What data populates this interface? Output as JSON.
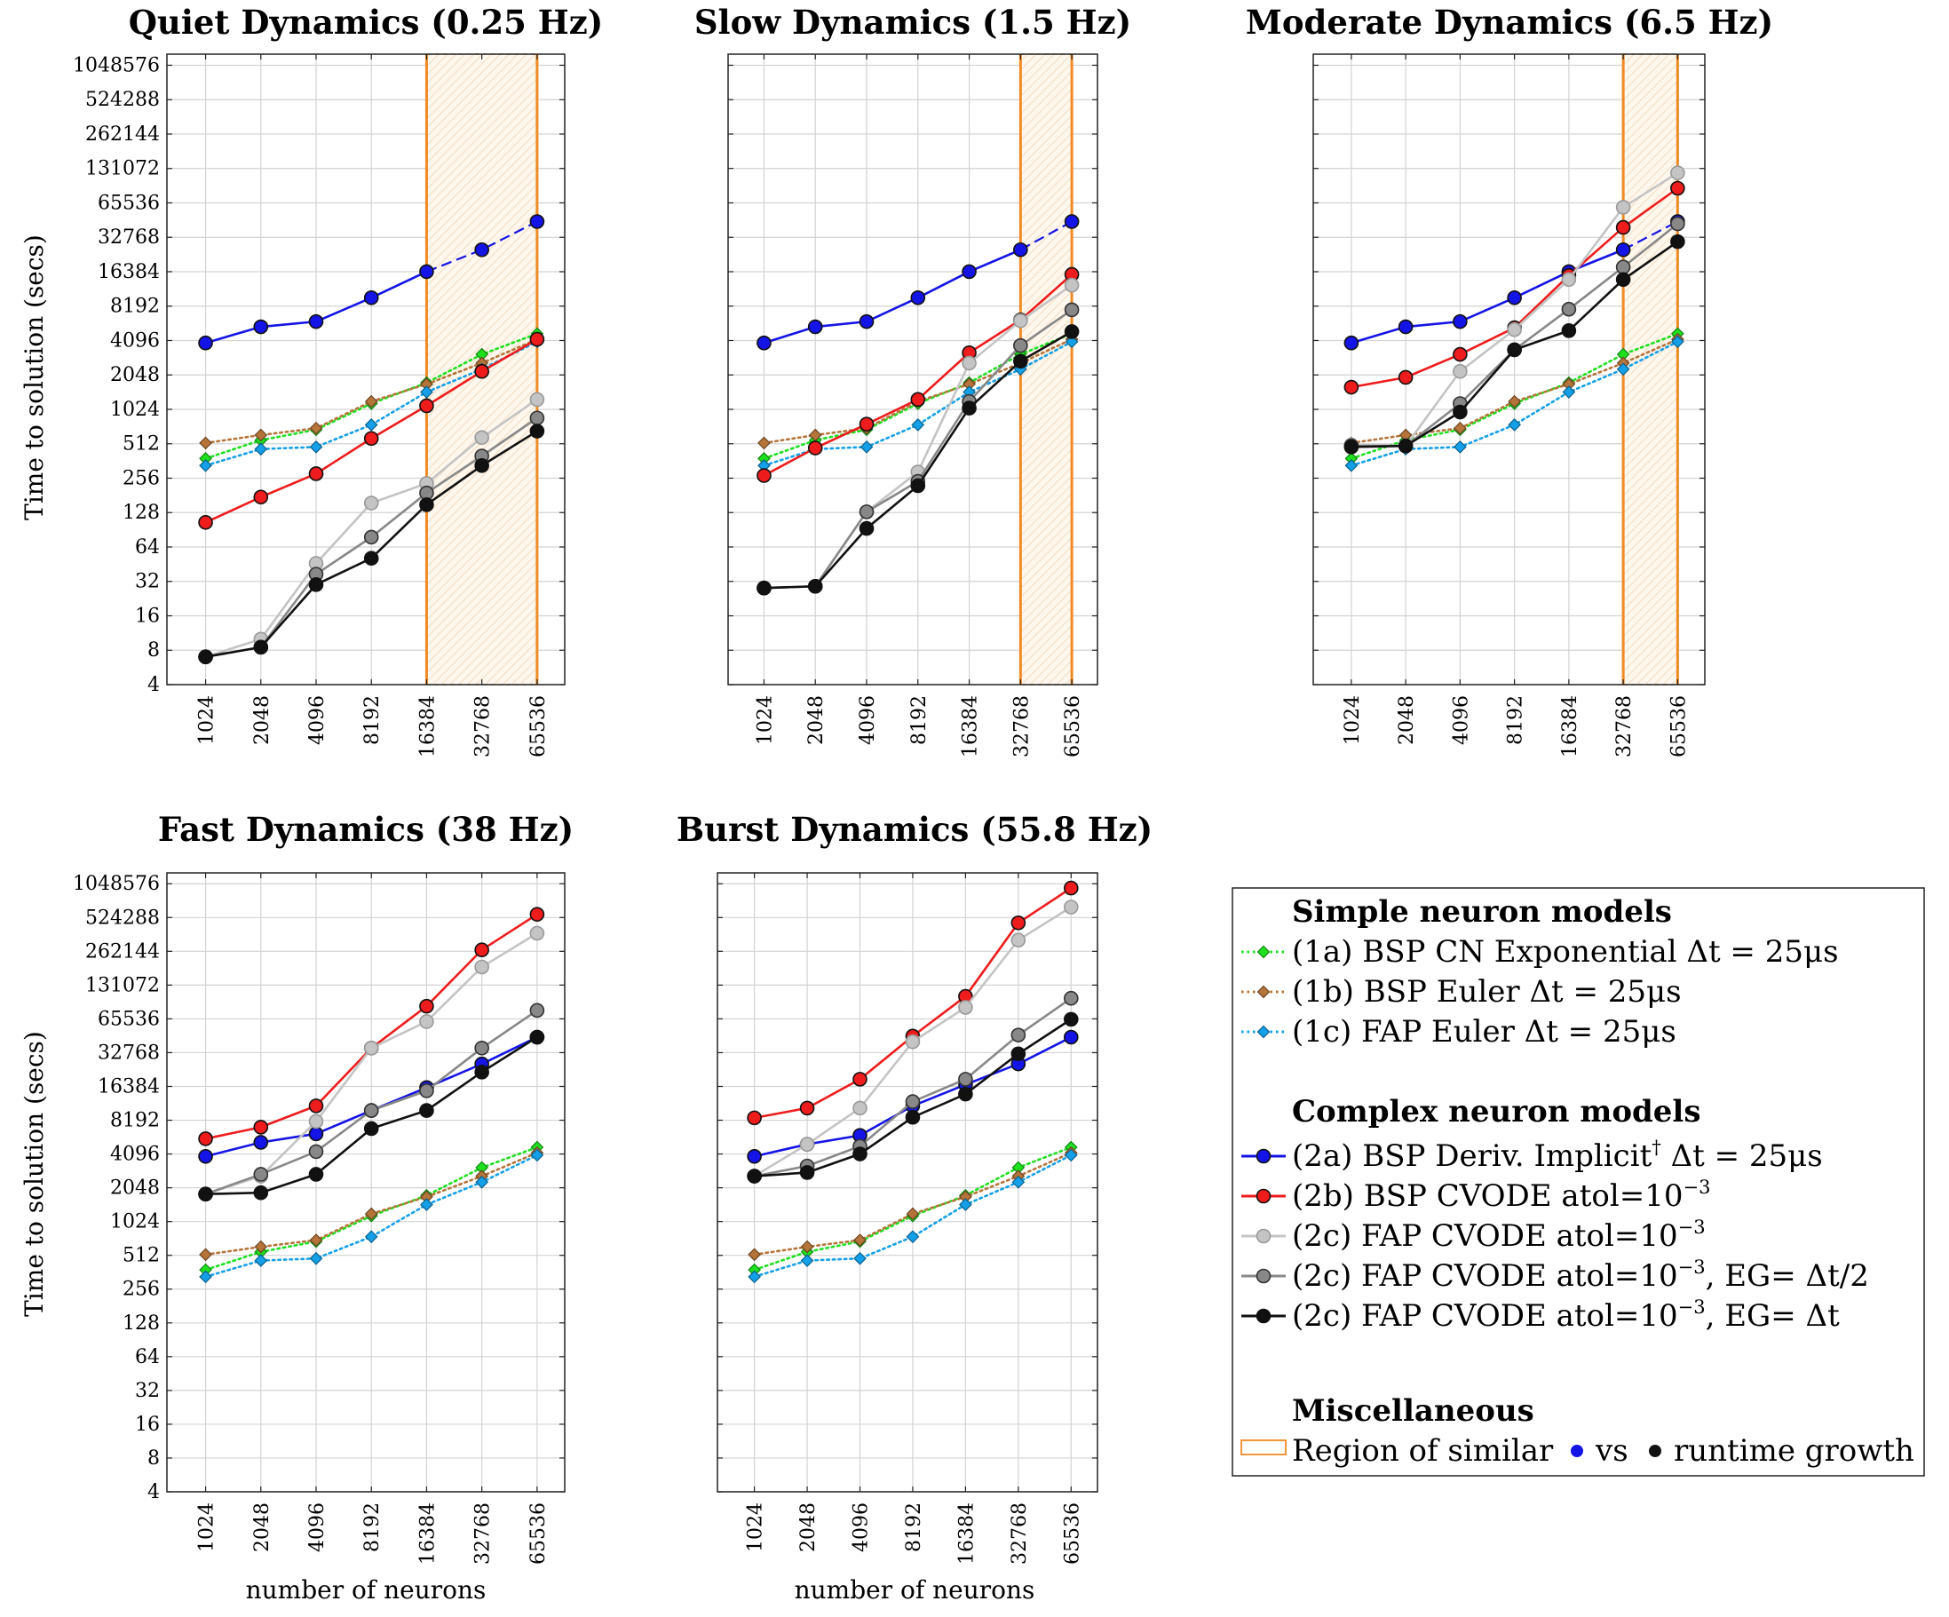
{
  "chart_data": {
    "type": "line",
    "scale": "log2",
    "x": [
      1024,
      2048,
      4096,
      8192,
      16384,
      32768,
      65536
    ],
    "x_tick_labels": [
      "1024",
      "2048",
      "4096",
      "8192",
      "16384",
      "32768",
      "65536"
    ],
    "y_tick_values": [
      4,
      8,
      16,
      32,
      64,
      128,
      256,
      512,
      1024,
      2048,
      4096,
      8192,
      16384,
      32768,
      65536,
      131072,
      262144,
      524288,
      1048576
    ],
    "y_tick_labels": [
      "4",
      "8",
      "16",
      "32",
      "64",
      "128",
      "256",
      "512",
      "1024",
      "2048",
      "4096",
      "8192",
      "16384",
      "32768",
      "65536",
      "131072",
      "262144",
      "524288",
      "1048576"
    ],
    "ylim": [
      4,
      1310720
    ],
    "ylabel": "Time to solution (secs)",
    "xlabel": "number of neurons",
    "grid": true,
    "series_styles": {
      "1a": {
        "color": "#1ee01e",
        "dash": "dotted",
        "marker": "diamond"
      },
      "1b": {
        "color": "#b5743a",
        "dash": "dotted",
        "marker": "diamond"
      },
      "1c": {
        "color": "#14a0e8",
        "dash": "dotted",
        "marker": "diamond"
      },
      "2a": {
        "color": "#1414e6",
        "dash": "solid",
        "marker": "circle"
      },
      "2b": {
        "color": "#ee1c1c",
        "dash": "solid",
        "marker": "circle"
      },
      "2c1": {
        "color": "#c4c4c4",
        "dash": "solid",
        "marker": "circle"
      },
      "2c2": {
        "color": "#888888",
        "dash": "solid",
        "marker": "circle"
      },
      "2c3": {
        "color": "#111111",
        "dash": "solid",
        "marker": "circle"
      }
    },
    "region_color": "#f08a24",
    "panels": [
      {
        "title": "Quiet Dynamics (0.25 Hz)",
        "region": [
          16384,
          65536
        ],
        "dashed_2a_from": 16384,
        "series": [
          {
            "id": "1a",
            "values": [
              380,
              550,
              680,
              1150,
              1750,
              3100,
              4700
            ]
          },
          {
            "id": "1b",
            "values": [
              520,
              610,
              700,
              1200,
              1700,
              2600,
              4200
            ]
          },
          {
            "id": "1c",
            "values": [
              330,
              460,
              480,
              750,
              1450,
              2300,
              4000
            ]
          },
          {
            "id": "2a",
            "values": [
              3900,
              5400,
              6000,
              9700,
              16400,
              25500,
              45000
            ]
          },
          {
            "id": "2b",
            "values": [
              105,
              175,
              280,
              570,
              1100,
              2200,
              4200
            ]
          },
          {
            "id": "2c1",
            "values": [
              7,
              10,
              46,
              155,
              230,
              580,
              1250
            ]
          },
          {
            "id": "2c2",
            "values": [
              7,
              8.5,
              37,
              78,
              190,
              400,
              860
            ]
          },
          {
            "id": "2c3",
            "values": [
              7,
              8.5,
              30,
              51,
              150,
              330,
              660
            ]
          }
        ]
      },
      {
        "title": "Slow Dynamics (1.5 Hz)",
        "region": [
          32768,
          65536
        ],
        "dashed_2a_from": 32768,
        "series": [
          {
            "id": "1a",
            "values": [
              380,
              550,
              680,
              1150,
              1750,
              3100,
              4700
            ]
          },
          {
            "id": "1b",
            "values": [
              520,
              610,
              700,
              1200,
              1700,
              2600,
              4200
            ]
          },
          {
            "id": "1c",
            "values": [
              330,
              460,
              480,
              750,
              1450,
              2300,
              4000
            ]
          },
          {
            "id": "2a",
            "values": [
              3900,
              5400,
              6000,
              9700,
              16400,
              25500,
              45000
            ]
          },
          {
            "id": "2b",
            "values": [
              270,
              470,
              760,
              1250,
              3200,
              6200,
              15500
            ]
          },
          {
            "id": "2c1",
            "values": [
              28,
              29,
              130,
              290,
              2600,
              6100,
              12500
            ]
          },
          {
            "id": "2c2",
            "values": [
              28,
              29,
              130,
              240,
              1200,
              3700,
              7600
            ]
          },
          {
            "id": "2c3",
            "values": [
              28,
              29,
              93,
              220,
              1050,
              2700,
              4900
            ]
          }
        ]
      },
      {
        "title": "Moderate Dynamics (6.5 Hz)",
        "region": [
          32768,
          65536
        ],
        "dashed_2a_from": 32768,
        "series": [
          {
            "id": "1a",
            "values": [
              380,
              550,
              680,
              1150,
              1750,
              3100,
              4700
            ]
          },
          {
            "id": "1b",
            "values": [
              520,
              610,
              700,
              1200,
              1700,
              2600,
              4200
            ]
          },
          {
            "id": "1c",
            "values": [
              330,
              460,
              480,
              750,
              1450,
              2300,
              4000
            ]
          },
          {
            "id": "2a",
            "values": [
              3900,
              5400,
              6000,
              9700,
              16400,
              25500,
              45000
            ]
          },
          {
            "id": "2b",
            "values": [
              1600,
              1950,
              3100,
              5300,
              15200,
              40000,
              88000
            ]
          },
          {
            "id": "2c1",
            "values": [
              500,
              490,
              2200,
              5100,
              14000,
              60000,
              120000
            ]
          },
          {
            "id": "2c2",
            "values": [
              490,
              490,
              1150,
              3400,
              7700,
              18000,
              43000
            ]
          },
          {
            "id": "2c3",
            "values": [
              480,
              490,
              970,
              3400,
              5000,
              14000,
              30000
            ]
          }
        ]
      },
      {
        "title": "Fast Dynamics (38 Hz)",
        "series": [
          {
            "id": "1a",
            "values": [
              380,
              550,
              680,
              1150,
              1750,
              3100,
              4700
            ]
          },
          {
            "id": "1b",
            "values": [
              520,
              610,
              700,
              1200,
              1700,
              2600,
              4200
            ]
          },
          {
            "id": "1c",
            "values": [
              330,
              460,
              480,
              750,
              1450,
              2300,
              4000
            ]
          },
          {
            "id": "2a",
            "values": [
              3900,
              5200,
              6200,
              10000,
              16000,
              26000,
              45000
            ]
          },
          {
            "id": "2b",
            "values": [
              5600,
              7100,
              11000,
              36000,
              85000,
              270000,
              560000
            ]
          },
          {
            "id": "2c1",
            "values": [
              1800,
              2600,
              8000,
              36000,
              62000,
              190000,
              380000
            ]
          },
          {
            "id": "2c2",
            "values": [
              1800,
              2700,
              4300,
              10000,
              15000,
              36000,
              78000
            ]
          },
          {
            "id": "2c3",
            "values": [
              1800,
              1850,
              2700,
              6900,
              10000,
              22000,
              45000
            ]
          }
        ]
      },
      {
        "title": "Burst Dynamics (55.8 Hz)",
        "series": [
          {
            "id": "1a",
            "values": [
              380,
              550,
              680,
              1150,
              1750,
              3100,
              4700
            ]
          },
          {
            "id": "1b",
            "values": [
              520,
              610,
              700,
              1200,
              1700,
              2600,
              4200
            ]
          },
          {
            "id": "1c",
            "values": [
              330,
              460,
              480,
              750,
              1450,
              2300,
              4000
            ]
          },
          {
            "id": "2a",
            "values": [
              3900,
              5000,
              6000,
              11000,
              17000,
              26000,
              45000
            ]
          },
          {
            "id": "2b",
            "values": [
              8600,
              10500,
              19000,
              46000,
              104000,
              470000,
              960000
            ]
          },
          {
            "id": "2c1",
            "values": [
              2600,
              5000,
              10500,
              41000,
              83000,
              330000,
              650000
            ]
          },
          {
            "id": "2c2",
            "values": [
              2600,
              3200,
              4800,
              12000,
              19000,
              47000,
              100000
            ]
          },
          {
            "id": "2c3",
            "values": [
              2600,
              2800,
              4100,
              8700,
              14000,
              32000,
              65000
            ]
          }
        ]
      }
    ],
    "legend": {
      "sections": [
        {
          "title": "Simple neuron models",
          "entries": [
            {
              "id": "1a",
              "label": "(1a) BSP CN Exponential Δt = 25μs"
            },
            {
              "id": "1b",
              "label": "(1b) BSP Euler Δt = 25μs"
            },
            {
              "id": "1c",
              "label": "(1c) FAP Euler Δt = 25μs"
            }
          ]
        },
        {
          "title": "Complex neuron models",
          "entries": [
            {
              "id": "2a",
              "label": "(2a) BSP Deriv. Implicit",
              "sup": "†",
              "label_tail": " Δt = 25μs"
            },
            {
              "id": "2b",
              "label": "(2b) BSP CVODE atol=10",
              "sup": "−3",
              "label_tail": ""
            },
            {
              "id": "2c1",
              "label": "(2c) FAP CVODE atol=10",
              "sup": "−3",
              "label_tail": ""
            },
            {
              "id": "2c2",
              "label": "(2c) FAP CVODE atol=10",
              "sup": "−3",
              "label_tail": ", EG= Δt/2"
            },
            {
              "id": "2c3",
              "label": "(2c) FAP CVODE atol=10",
              "sup": "−3",
              "label_tail": ", EG= Δt"
            }
          ]
        },
        {
          "title": "Miscellaneous",
          "region_entry": {
            "label_pre": "Region of similar",
            "label_mid": "vs",
            "label_post": "runtime growth"
          }
        }
      ]
    }
  }
}
